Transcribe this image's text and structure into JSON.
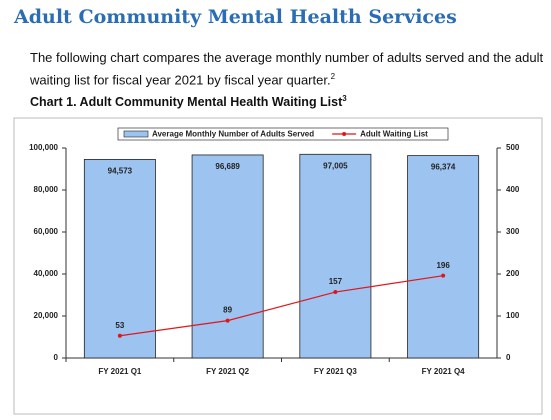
{
  "header": {
    "title": "Adult Community Mental Health Services"
  },
  "paragraph": {
    "text": "The following chart compares the average monthly number of adults served and the adult waiting list for fiscal year 2021 by fiscal year quarter.",
    "footnote": "2"
  },
  "chart_data": {
    "type": "bar-line",
    "title": "Chart 1. Adult Community Mental Health Waiting List",
    "title_footnote": "3",
    "categories": [
      "FY 2021 Q1",
      "FY 2021 Q2",
      "FY 2021 Q3",
      "FY 2021 Q4"
    ],
    "series": [
      {
        "name": "Average Monthly Number of Adults Served",
        "type": "bar",
        "color": "#9dc3f0",
        "values": [
          94573,
          96689,
          97005,
          96374
        ],
        "value_labels": [
          "94,573",
          "96,689",
          "97,005",
          "96,374"
        ]
      },
      {
        "name": "Adult Waiting List",
        "type": "line",
        "color": "#e0161b",
        "axis": "y2",
        "values": [
          53,
          89,
          157,
          196
        ]
      }
    ],
    "ylim": [
      0,
      100000
    ],
    "yticks": [
      {
        "value": 0,
        "label": "0"
      },
      {
        "value": 20000,
        "label": "20,000"
      },
      {
        "value": 40000,
        "label": "40,000"
      },
      {
        "value": 60000,
        "label": "60,000"
      },
      {
        "value": 80000,
        "label": "80,000"
      },
      {
        "value": 100000,
        "label": "100,000"
      }
    ],
    "y2lim": [
      0,
      500
    ],
    "y2ticks": [
      0,
      100,
      200,
      300,
      400,
      500
    ],
    "legend": "top"
  }
}
